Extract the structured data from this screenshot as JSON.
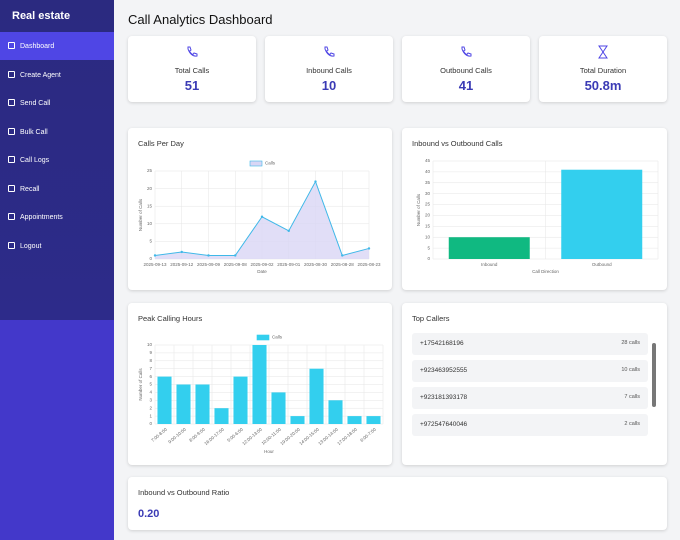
{
  "sidebar": {
    "brand": "Real estate",
    "nav": [
      "Dashboard",
      "Create Agent",
      "Send Call",
      "Bulk Call",
      "Call Logs",
      "Recall",
      "Appointments",
      "Logout"
    ]
  },
  "header": {
    "title": "Call Analytics Dashboard"
  },
  "stats": [
    {
      "label": "Total Calls",
      "value": "51"
    },
    {
      "label": "Inbound Calls",
      "value": "10"
    },
    {
      "label": "Outbound Calls",
      "value": "41"
    },
    {
      "label": "Total Duration",
      "value": "50.8m"
    }
  ],
  "chart_data": [
    {
      "type": "line",
      "title": "Calls Per Day",
      "categories": [
        "2025-09-13",
        "2025-09-12",
        "2025-09-09",
        "2025-09-08",
        "2025-09-02",
        "2025-09-01",
        "2025-08-30",
        "2025-08-28",
        "2025-08-23"
      ],
      "series": [
        {
          "name": "Calls",
          "color": "#3fb8e8",
          "fill": "#d9d6f5",
          "values": [
            1,
            2,
            1,
            1,
            12,
            8,
            22,
            1,
            3
          ]
        }
      ],
      "x_label": "Date",
      "y_label": "Number of Calls",
      "ylim": [
        0,
        25
      ],
      "yticks": [
        0,
        5,
        10,
        15,
        20,
        25
      ],
      "grid": true,
      "legend": "top"
    },
    {
      "type": "bar",
      "title": "Inbound vs Outbound Calls",
      "categories": [
        "Inbound",
        "Outbound"
      ],
      "values": [
        10,
        41
      ],
      "colors": [
        "#10b981",
        "#33cfee"
      ],
      "x_label": "Call Direction",
      "y_label": "Number of Calls",
      "ylim": [
        0,
        45
      ],
      "yticks": [
        0,
        5,
        10,
        15,
        20,
        25,
        30,
        35,
        40,
        45
      ],
      "grid": true
    },
    {
      "type": "bar",
      "title": "Peak Calling Hours",
      "categories": [
        "7:00-8:00",
        "9:00-10:00",
        "8:00-9:00",
        "16:00-17:00",
        "5:00-6:00",
        "12:00-13:00",
        "10:00-11:00",
        "19:00-20:00",
        "14:00-15:00",
        "13:00-14:00",
        "17:00-18:00",
        "6:00-7:00"
      ],
      "series": [
        {
          "name": "Calls",
          "color": "#33cfee",
          "values": [
            6,
            5,
            5,
            2,
            6,
            10,
            4,
            1,
            7,
            3,
            1,
            1
          ]
        }
      ],
      "x_label": "Hour",
      "y_label": "Number of Calls",
      "ylim": [
        0,
        10
      ],
      "yticks": [
        0,
        1,
        2,
        3,
        4,
        5,
        6,
        7,
        8,
        9,
        10
      ],
      "grid": true,
      "legend": "top"
    }
  ],
  "top_callers": {
    "title": "Top Callers",
    "rows": [
      [
        "+17542168196",
        "28 calls"
      ],
      [
        "+923463952555",
        "10 calls"
      ],
      [
        "+923181393178",
        "7 calls"
      ],
      [
        "+972547640046",
        "2 calls"
      ]
    ]
  },
  "ratio": {
    "title": "Inbound vs Outbound Ratio",
    "value": "0.20"
  }
}
